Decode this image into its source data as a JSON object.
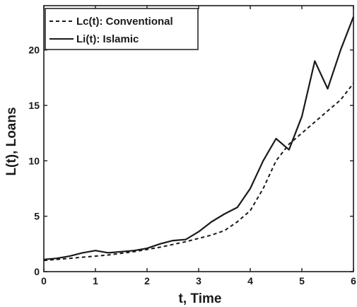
{
  "chart_data": {
    "type": "line",
    "title": "",
    "xlabel": "t, Time",
    "ylabel": "L(t), Loans",
    "xlim": [
      0,
      6
    ],
    "ylim": [
      0,
      24
    ],
    "xticks": [
      0,
      1,
      2,
      3,
      4,
      5,
      6
    ],
    "yticks": [
      0,
      5,
      10,
      15,
      20
    ],
    "grid": false,
    "legend_position": "top-left",
    "series": [
      {
        "name": "Lc(t): Conventional",
        "line_style": "dashed",
        "color": "#1a1a1a",
        "x": [
          0,
          0.25,
          0.5,
          0.75,
          1.0,
          1.25,
          1.5,
          1.75,
          2.0,
          2.25,
          2.5,
          2.75,
          3.0,
          3.25,
          3.5,
          3.75,
          4.0,
          4.25,
          4.5,
          4.75,
          5.0,
          5.25,
          5.5,
          5.75,
          6.0
        ],
        "y": [
          1.0,
          1.1,
          1.2,
          1.3,
          1.4,
          1.5,
          1.65,
          1.8,
          2.0,
          2.2,
          2.45,
          2.7,
          3.0,
          3.3,
          3.7,
          4.5,
          5.5,
          7.5,
          10.0,
          11.5,
          12.5,
          13.5,
          14.5,
          15.5,
          17.0
        ]
      },
      {
        "name": "Li(t): Islamic",
        "line_style": "solid",
        "color": "#1a1a1a",
        "x": [
          0,
          0.25,
          0.5,
          0.75,
          1.0,
          1.25,
          1.5,
          1.75,
          2.0,
          2.25,
          2.5,
          2.75,
          3.0,
          3.25,
          3.5,
          3.75,
          4.0,
          4.25,
          4.5,
          4.75,
          5.0,
          5.25,
          5.5,
          5.75,
          6.0
        ],
        "y": [
          1.1,
          1.2,
          1.4,
          1.7,
          1.9,
          1.7,
          1.8,
          1.9,
          2.1,
          2.5,
          2.8,
          2.9,
          3.6,
          4.5,
          5.2,
          5.8,
          7.5,
          10.0,
          12.0,
          11.0,
          14.0,
          19.0,
          16.5,
          20.0,
          23.0
        ]
      }
    ]
  }
}
